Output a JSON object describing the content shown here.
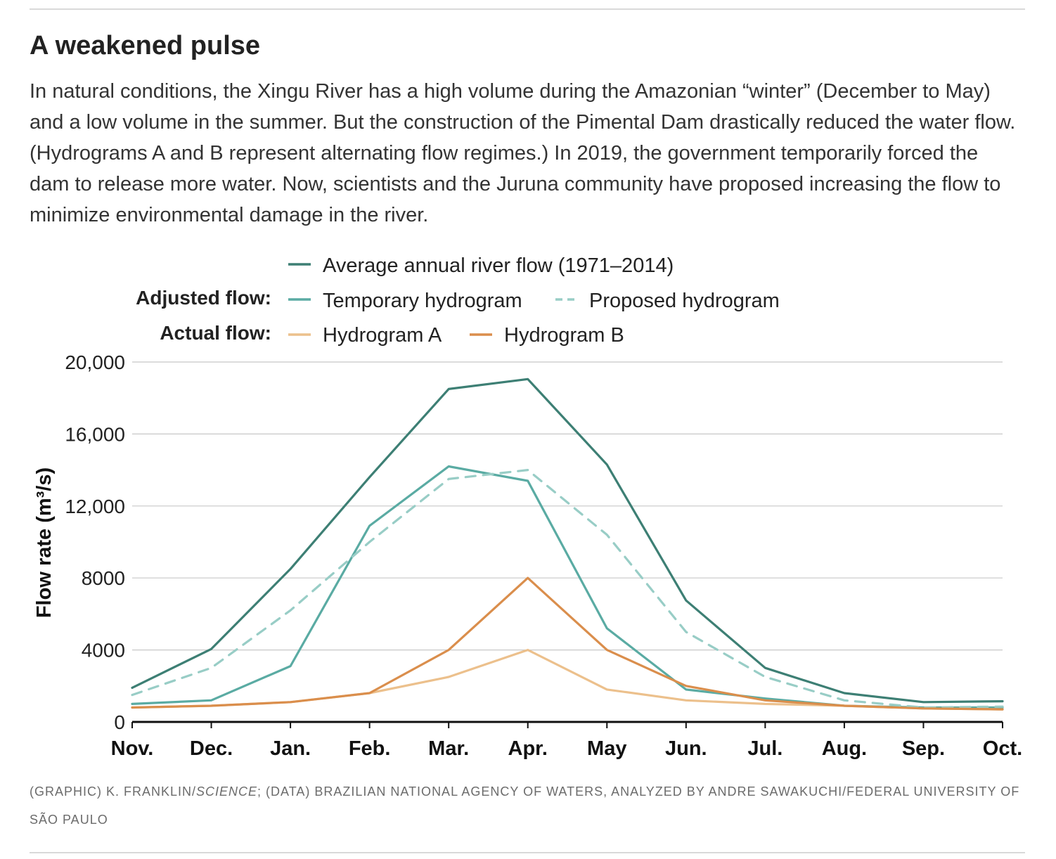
{
  "header": {
    "title": "A weakened pulse",
    "description": "In natural conditions, the Xingu River has a high volume during the Amazonian “winter” (December to May) and a low volume in the summer. But the construction of the Pimental Dam drastically reduced the water flow. (Hydrograms A and B represent alternating flow regimes.) In 2019, the government temporarily forced the dam to release more water. Now, scientists and the Juruna community have proposed increasing the flow to minimize environmental damage in the river."
  },
  "legend": {
    "adjusted_label": "Adjusted flow:",
    "actual_label": "Actual flow:"
  },
  "credit": {
    "prefix": "(GRAPHIC) K. FRANKLIN/",
    "publication": "SCIENCE",
    "rest": "; (DATA) BRAZILIAN NATIONAL AGENCY OF WATERS, ANALYZED BY ANDRE SAWAKUCHI/FEDERAL UNIVERSITY OF SÃO PAULO"
  },
  "chart_data": {
    "type": "line",
    "title": "",
    "xlabel": "",
    "ylabel": "Flow rate (m³/s)",
    "categories": [
      "Nov.",
      "Dec.",
      "Jan.",
      "Feb.",
      "Mar.",
      "Apr.",
      "May",
      "Jun.",
      "Jul.",
      "Aug.",
      "Sep.",
      "Oct."
    ],
    "ylim": [
      0,
      20000
    ],
    "yticks": [
      0,
      4000,
      8000,
      12000,
      16000,
      20000
    ],
    "ytick_labels": [
      "0",
      "4000",
      "8000",
      "12,000",
      "16,000",
      "20,000"
    ],
    "grid": true,
    "legend_position": "top",
    "series": [
      {
        "name": "Average annual river flow (1971–2014)",
        "color": "#3d7f74",
        "dashed": false,
        "values": [
          1900,
          4050,
          8500,
          13600,
          18500,
          19050,
          14300,
          6750,
          3000,
          1600,
          1100,
          1150
        ]
      },
      {
        "name": "Temporary hydrogram",
        "color": "#5aaba3",
        "dashed": false,
        "values": [
          1000,
          1200,
          3100,
          10900,
          14200,
          13400,
          5200,
          1800,
          1300,
          900,
          800,
          800
        ]
      },
      {
        "name": "Proposed hydrogram",
        "color": "#98cdc6",
        "dashed": true,
        "values": [
          1500,
          3000,
          6200,
          10000,
          13500,
          14000,
          10400,
          5000,
          2500,
          1200,
          800,
          850
        ]
      },
      {
        "name": "Hydrogram A",
        "color": "#ecc08c",
        "dashed": false,
        "values": [
          800,
          900,
          1100,
          1600,
          2500,
          4000,
          1800,
          1200,
          1000,
          900,
          750,
          700
        ]
      },
      {
        "name": "Hydrogram B",
        "color": "#da8e4c",
        "dashed": false,
        "values": [
          800,
          900,
          1100,
          1600,
          4000,
          8000,
          4000,
          2000,
          1200,
          900,
          750,
          700
        ]
      }
    ]
  }
}
